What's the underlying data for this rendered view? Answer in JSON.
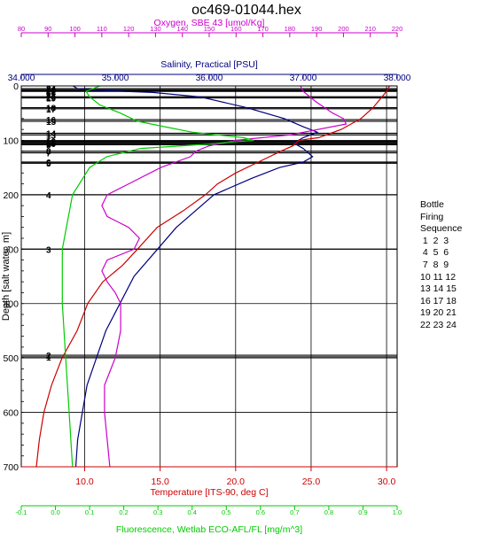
{
  "chart_data": {
    "type": "line",
    "title": "oc469-01044.hex",
    "y_axis": {
      "label": "Depth [salt water, m]",
      "range": [
        0,
        700
      ],
      "ticks": [
        "0",
        "100",
        "200",
        "300",
        "400",
        "500",
        "600",
        "700"
      ],
      "inverted": true
    },
    "x_axes": [
      {
        "id": "oxygen",
        "label": "Oxygen, SBE 43 [umol/Kg]",
        "color": "#cc00cc",
        "range": [
          80,
          220
        ],
        "ticks": [
          "80",
          "90",
          "100",
          "110",
          "120",
          "130",
          "140",
          "150",
          "160",
          "170",
          "180",
          "190",
          "200",
          "210",
          "220"
        ]
      },
      {
        "id": "salinity",
        "label": "Salinity, Practical [PSU]",
        "color": "#000080",
        "range": [
          34.0,
          38.0
        ],
        "ticks": [
          "34.000",
          "35.000",
          "36.000",
          "37.000",
          "38.000"
        ]
      },
      {
        "id": "temperature",
        "label": "Temperature [ITS-90, deg C]",
        "color": "#cc0000",
        "range": [
          5.8,
          30.7
        ],
        "ticks": [
          "10.0",
          "15.0",
          "20.0",
          "25.0",
          "30.0"
        ]
      },
      {
        "id": "fluorescence",
        "label": "Fluorescence, Wetlab ECO-AFL/FL [mg/m^3]",
        "color": "#00cc00",
        "range": [
          -0.1,
          1.0
        ],
        "ticks": [
          "-0.1",
          "0.0",
          "0.1",
          "0.2",
          "0.3",
          "0.4",
          "0.5",
          "0.6",
          "0.7",
          "0.8",
          "0.9",
          "1.0"
        ]
      }
    ],
    "bottles": [
      {
        "label": "24",
        "depth": 5
      },
      {
        "label": "23",
        "depth": 7
      },
      {
        "label": "22",
        "depth": 9
      },
      {
        "label": "21",
        "depth": 10
      },
      {
        "label": "20",
        "depth": 20
      },
      {
        "label": "19",
        "depth": 22
      },
      {
        "label": "18",
        "depth": 40
      },
      {
        "label": "17",
        "depth": 42
      },
      {
        "label": "16",
        "depth": 62
      },
      {
        "label": "15",
        "depth": 65
      },
      {
        "label": "14",
        "depth": 87
      },
      {
        "label": "13",
        "depth": 90
      },
      {
        "label": "12",
        "depth": 102
      },
      {
        "label": "11",
        "depth": 104
      },
      {
        "label": "10",
        "depth": 106
      },
      {
        "label": "9",
        "depth": 108
      },
      {
        "label": "8",
        "depth": 120
      },
      {
        "label": "7",
        "depth": 123
      },
      {
        "label": "6",
        "depth": 140
      },
      {
        "label": "5",
        "depth": 142
      },
      {
        "label": "4",
        "depth": 200
      },
      {
        "label": "3",
        "depth": 300
      },
      {
        "label": "2",
        "depth": 495
      },
      {
        "label": "1",
        "depth": 498
      }
    ],
    "series": [
      {
        "name": "Salinity",
        "axis": "salinity",
        "color": "#000080",
        "points": [
          [
            0,
            34.55
          ],
          [
            5,
            34.6
          ],
          [
            8,
            34.8
          ],
          [
            12,
            35.4
          ],
          [
            20,
            35.9
          ],
          [
            40,
            36.4
          ],
          [
            60,
            36.8
          ],
          [
            75,
            37.0
          ],
          [
            85,
            37.15
          ],
          [
            95,
            37.0
          ],
          [
            105,
            36.9
          ],
          [
            115,
            37.0
          ],
          [
            130,
            37.1
          ],
          [
            140,
            37.0
          ],
          [
            150,
            36.75
          ],
          [
            170,
            36.45
          ],
          [
            200,
            36.05
          ],
          [
            230,
            35.85
          ],
          [
            260,
            35.65
          ],
          [
            300,
            35.45
          ],
          [
            350,
            35.2
          ],
          [
            400,
            35.05
          ],
          [
            450,
            34.9
          ],
          [
            500,
            34.8
          ],
          [
            550,
            34.7
          ],
          [
            600,
            34.65
          ],
          [
            650,
            34.6
          ],
          [
            700,
            34.58
          ]
        ]
      },
      {
        "name": "Oxygen",
        "axis": "oxygen",
        "color": "#cc00cc",
        "points": [
          [
            0,
            184
          ],
          [
            10,
            185
          ],
          [
            30,
            190
          ],
          [
            50,
            196
          ],
          [
            60,
            200
          ],
          [
            70,
            201
          ],
          [
            90,
            180
          ],
          [
            100,
            160
          ],
          [
            110,
            150
          ],
          [
            120,
            145
          ],
          [
            130,
            143
          ],
          [
            150,
            132
          ],
          [
            180,
            120
          ],
          [
            200,
            112
          ],
          [
            220,
            110
          ],
          [
            240,
            112
          ],
          [
            260,
            120
          ],
          [
            280,
            124
          ],
          [
            300,
            122
          ],
          [
            320,
            112
          ],
          [
            340,
            110
          ],
          [
            360,
            112
          ],
          [
            380,
            115
          ],
          [
            400,
            117
          ],
          [
            450,
            117
          ],
          [
            500,
            115
          ],
          [
            550,
            111
          ],
          [
            600,
            111
          ],
          [
            650,
            112
          ],
          [
            700,
            113
          ]
        ]
      },
      {
        "name": "Temperature",
        "axis": "temperature",
        "color": "#cc0000",
        "points": [
          [
            0,
            30.2
          ],
          [
            10,
            30.0
          ],
          [
            20,
            29.7
          ],
          [
            40,
            29.1
          ],
          [
            60,
            28.3
          ],
          [
            80,
            27.0
          ],
          [
            95,
            25.5
          ],
          [
            100,
            24.2
          ],
          [
            110,
            23.8
          ],
          [
            120,
            23.0
          ],
          [
            140,
            21.5
          ],
          [
            160,
            20.0
          ],
          [
            180,
            18.8
          ],
          [
            200,
            18.0
          ],
          [
            230,
            16.5
          ],
          [
            260,
            14.8
          ],
          [
            300,
            13.5
          ],
          [
            330,
            12.5
          ],
          [
            360,
            11.2
          ],
          [
            400,
            10.2
          ],
          [
            450,
            9.5
          ],
          [
            500,
            8.5
          ],
          [
            550,
            7.8
          ],
          [
            600,
            7.3
          ],
          [
            650,
            7.0
          ],
          [
            700,
            6.8
          ]
        ]
      },
      {
        "name": "Fluorescence",
        "axis": "fluorescence",
        "color": "#00cc00",
        "points": [
          [
            0,
            0.13
          ],
          [
            10,
            0.09
          ],
          [
            20,
            0.1
          ],
          [
            35,
            0.13
          ],
          [
            50,
            0.19
          ],
          [
            65,
            0.24
          ],
          [
            75,
            0.32
          ],
          [
            85,
            0.4
          ],
          [
            95,
            0.55
          ],
          [
            100,
            0.58
          ],
          [
            106,
            0.47
          ],
          [
            115,
            0.25
          ],
          [
            130,
            0.15
          ],
          [
            150,
            0.1
          ],
          [
            200,
            0.05
          ],
          [
            300,
            0.02
          ],
          [
            400,
            0.02
          ],
          [
            500,
            0.03
          ],
          [
            600,
            0.04
          ],
          [
            700,
            0.05
          ]
        ]
      }
    ],
    "grid": true
  },
  "legend": {
    "title_lines": [
      "Bottle",
      "Firing",
      "Sequence"
    ],
    "rows": [
      " 1  2  3",
      " 4  5  6",
      " 7  8  9",
      "10 11 12",
      "13 14 15",
      "16 17 18",
      "19 20 21",
      "22 23 24"
    ]
  }
}
